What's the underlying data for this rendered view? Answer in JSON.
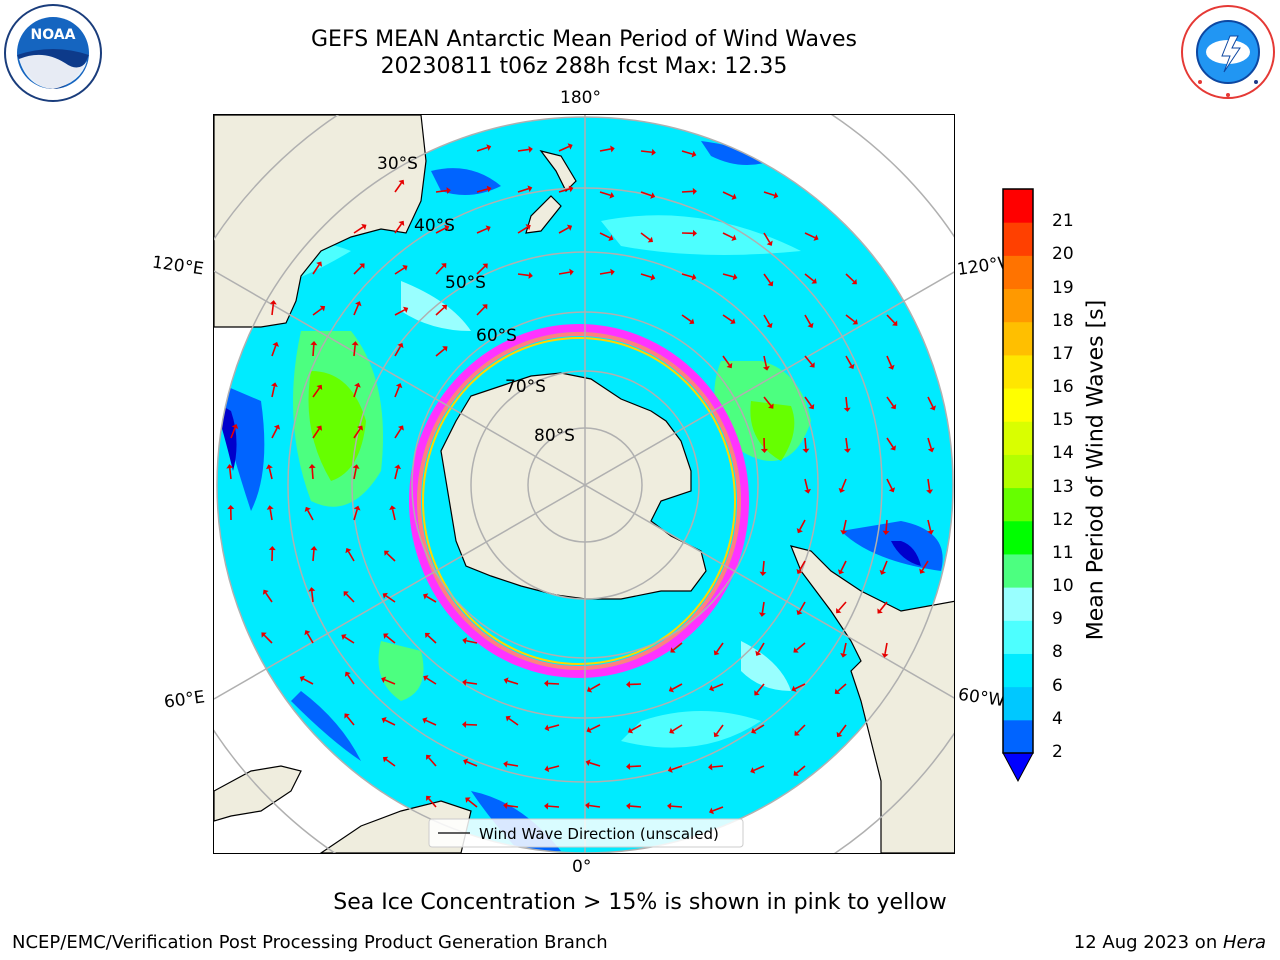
{
  "title_line1": "GEFS MEAN Antarctic Mean Period of Wind Waves",
  "title_line2": "20230811 t06z 288h fcst   Max: 12.35",
  "noaa_logo": {
    "icon": "noaa-logo",
    "text": "NOAA"
  },
  "nws_logo": {
    "icon": "nws-logo",
    "text": "NATIONAL WEATHER SERVICE"
  },
  "map": {
    "projection": "south-polar-stereographic",
    "longitude_labels": {
      "top": "180°",
      "bottom": "0°",
      "left_upper": "120°E",
      "left_lower": "60°E",
      "right_upper": "120°W",
      "right_lower": "60°W"
    },
    "latitude_labels": [
      "30°S",
      "40°S",
      "50°S",
      "60°S",
      "70°S",
      "80°S"
    ],
    "legend": "Wind Wave Direction (unscaled)",
    "land_color": "#efedde",
    "arrow_color": "#e50000",
    "sea_ice_colors": [
      "#ff33ff",
      "#ff8080",
      "#ffd700"
    ]
  },
  "colorbar": {
    "label": "Mean Period of Wind Waves [s]",
    "ticks": [
      "2",
      "4",
      "6",
      "8",
      "9",
      "10",
      "11",
      "12",
      "13",
      "14",
      "15",
      "16",
      "17",
      "18",
      "19",
      "20",
      "21"
    ],
    "colors": [
      "#0064ff",
      "#00c8ff",
      "#00ebff",
      "#4dffff",
      "#99ffff",
      "#4cff80",
      "#00ff00",
      "#66ff00",
      "#b3ff00",
      "#d9ff00",
      "#ffff00",
      "#ffe600",
      "#ffbf00",
      "#ff9900",
      "#ff7300",
      "#ff4000",
      "#ff0000"
    ],
    "under_color": "#0000ff"
  },
  "caption": "Sea Ice Concentration > 15% is shown in pink to yellow",
  "footer_left": "NCEP/EMC/Verification Post Processing Product Generation Branch",
  "footer_right_date": "12 Aug 2023 on ",
  "footer_right_host": "Hera"
}
